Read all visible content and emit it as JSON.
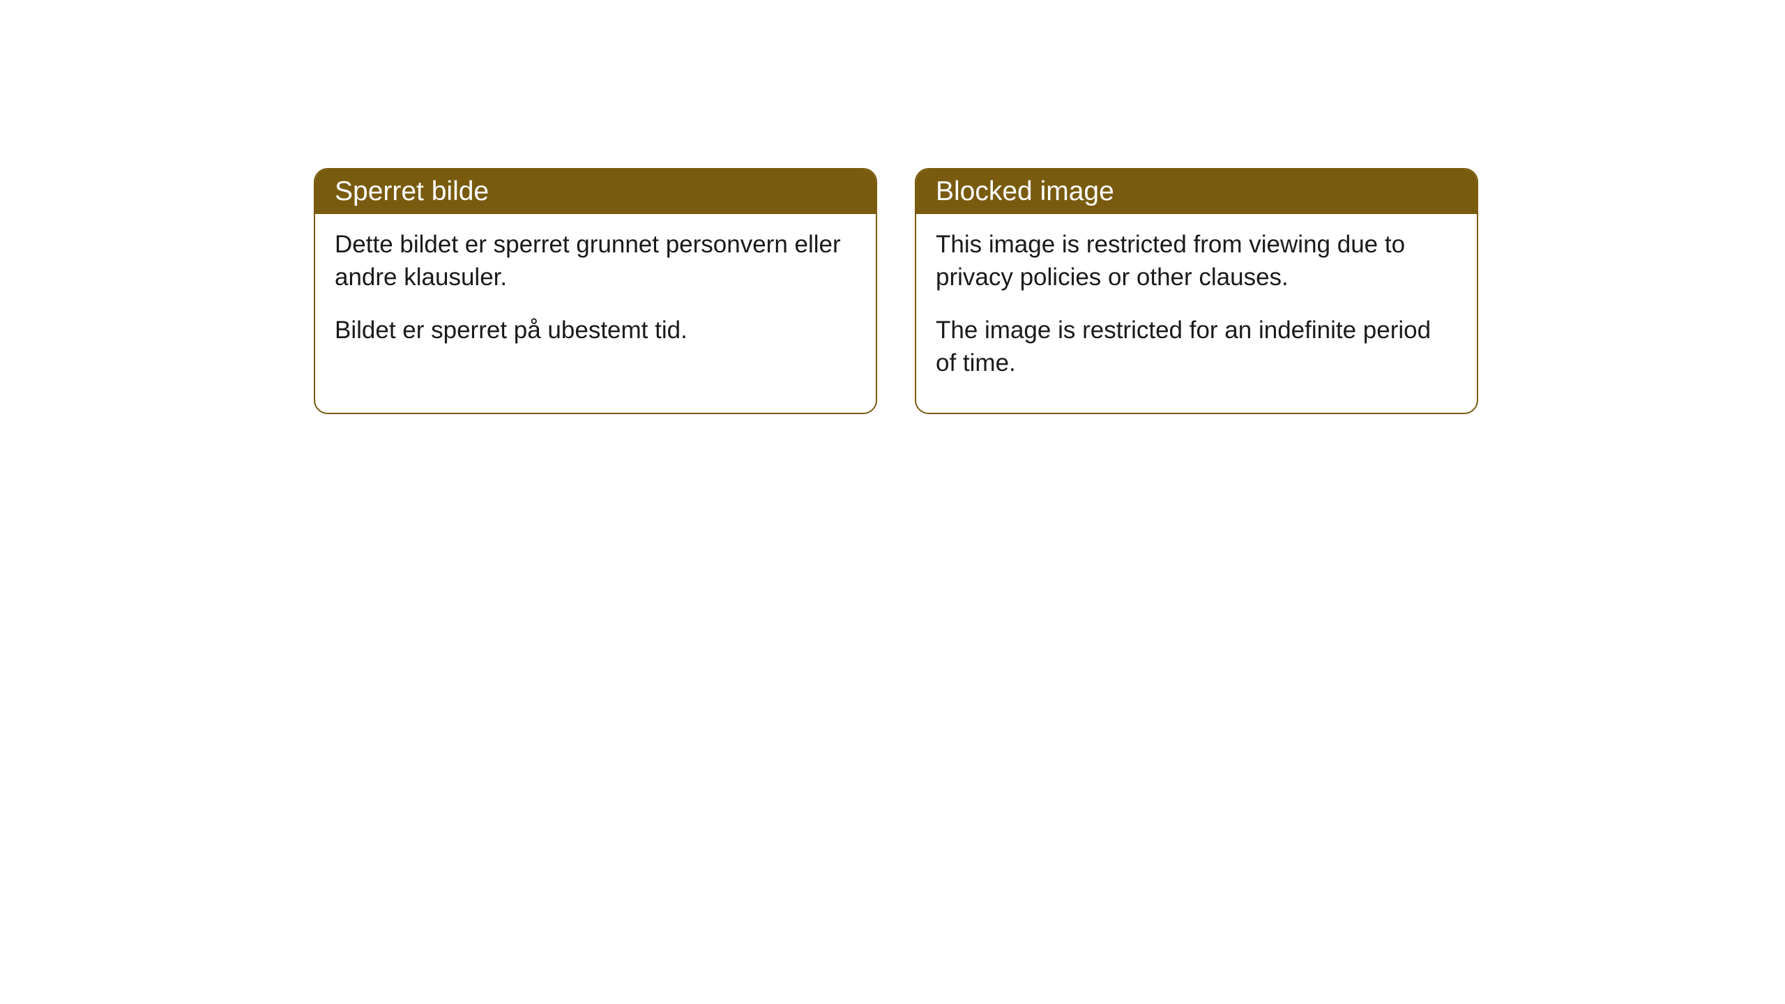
{
  "cards": [
    {
      "title": "Sperret bilde",
      "paragraph1": "Dette bildet er sperret grunnet personvern eller andre klausuler.",
      "paragraph2": "Bildet er sperret på ubestemt tid."
    },
    {
      "title": "Blocked image",
      "paragraph1": "This image is restricted from viewing due to privacy policies or other clauses.",
      "paragraph2": "The image is restricted for an indefinite period of time."
    }
  ],
  "style": {
    "header_background": "#795b0f",
    "header_text_color": "#ffffff",
    "border_color": "#795b0f",
    "body_text_color": "#1a1a1a",
    "card_background": "#ffffff",
    "border_radius": 20,
    "title_fontsize": 39,
    "body_fontsize": 35
  }
}
